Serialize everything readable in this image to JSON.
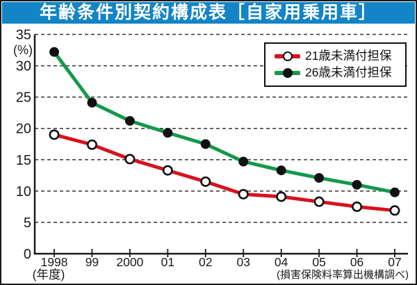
{
  "header": {
    "title": "年齢条件別契約構成表［自家用乗用車］",
    "bg_color": "#1384c5",
    "text_color": "#ffffff"
  },
  "chart_data": {
    "type": "line",
    "title": "年齢条件別契約構成表［自家用乗用車］",
    "x_labels": [
      "1998",
      "99",
      "2000",
      "01",
      "02",
      "03",
      "04",
      "05",
      "06",
      "07"
    ],
    "x_axis_note": "(年度)",
    "y_unit": "(%)",
    "y_ticks": [
      "0",
      "5",
      "10",
      "15",
      "20",
      "25",
      "30",
      "35"
    ],
    "ylim": [
      0,
      35
    ],
    "grid": "horizontal-dashed",
    "legend_position": "top-right",
    "series": [
      {
        "name": "21歳未満付担保",
        "color": "#d8121f",
        "marker": "open-circle",
        "values": [
          19.0,
          17.4,
          15.1,
          13.3,
          11.5,
          9.5,
          9.1,
          8.3,
          7.5,
          6.9
        ]
      },
      {
        "name": "26歳未満付担保",
        "color": "#14994a",
        "marker": "filled-circle",
        "values": [
          32.2,
          24.1,
          21.2,
          19.3,
          17.5,
          14.7,
          13.3,
          12.1,
          11.0,
          9.8
        ]
      }
    ],
    "source": "(損害保険料率算出機構調べ)"
  }
}
